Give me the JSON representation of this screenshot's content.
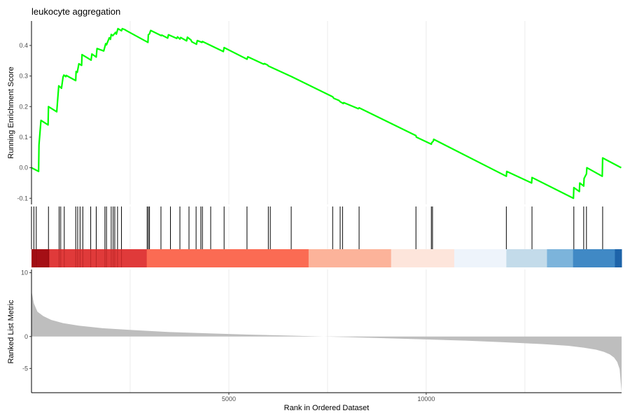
{
  "chart_data": {
    "type": "line",
    "title": "leukocyte aggregation",
    "xlabel": "Rank in Ordered Dataset",
    "x_ticks": [
      5000,
      10000
    ],
    "xlim": [
      0,
      14950
    ],
    "grid": "vertical",
    "running_score": {
      "ylabel": "Running Enrichment Score",
      "y_ticks": [
        -0.1,
        0.0,
        0.1,
        0.2,
        0.3,
        0.4
      ],
      "ylim": [
        -0.12,
        0.48
      ],
      "color": "#00ff00",
      "x": [
        0,
        180,
        190,
        240,
        420,
        430,
        640,
        660,
        690,
        760,
        800,
        820,
        870,
        880,
        1120,
        1130,
        1160,
        1200,
        1270,
        1280,
        1510,
        1530,
        1640,
        1660,
        1830,
        1880,
        1900,
        1970,
        2000,
        2020,
        2060,
        2130,
        2150,
        2190,
        2280,
        2300,
        2320,
        2360,
        2410,
        2950,
        2960,
        2990,
        3010,
        3020,
        3290,
        3300,
        3450,
        3470,
        3680,
        3700,
        3760,
        3780,
        3930,
        3950,
        4040,
        4060,
        4180,
        4200,
        4320,
        4330,
        4860,
        4880,
        5460,
        5480,
        5880,
        5900,
        5980,
        6000,
        6590,
        7630,
        7660,
        7790,
        7820,
        7900,
        7910,
        8280,
        8300,
        9740,
        9750,
        10130,
        10140,
        10180,
        10190,
        12030,
        12040,
        12670,
        12680,
        13730,
        13740,
        13880,
        13890,
        13990,
        14000,
        14060,
        14070,
        14460,
        14470,
        14940
      ],
      "y": [
        0.0,
        -0.012,
        0.075,
        0.155,
        0.14,
        0.2,
        0.183,
        0.218,
        0.268,
        0.26,
        0.297,
        0.303,
        0.298,
        0.302,
        0.285,
        0.315,
        0.312,
        0.34,
        0.335,
        0.37,
        0.352,
        0.372,
        0.362,
        0.39,
        0.382,
        0.406,
        0.402,
        0.425,
        0.42,
        0.436,
        0.432,
        0.443,
        0.437,
        0.455,
        0.448,
        0.455,
        0.454,
        0.452,
        0.448,
        0.41,
        0.435,
        0.438,
        0.446,
        0.449,
        0.432,
        0.434,
        0.424,
        0.435,
        0.423,
        0.428,
        0.421,
        0.426,
        0.415,
        0.427,
        0.418,
        0.412,
        0.404,
        0.416,
        0.41,
        0.413,
        0.38,
        0.393,
        0.355,
        0.363,
        0.339,
        0.341,
        0.336,
        0.333,
        0.298,
        0.232,
        0.227,
        0.22,
        0.216,
        0.21,
        0.213,
        0.193,
        0.196,
        0.105,
        0.1,
        0.077,
        0.082,
        0.087,
        0.093,
        -0.028,
        -0.012,
        -0.05,
        -0.032,
        -0.1,
        -0.065,
        -0.078,
        -0.05,
        -0.06,
        -0.035,
        -0.02,
        0.0,
        -0.028,
        0.032,
        0.0
      ]
    },
    "hit_positions": [
      60,
      120,
      430,
      700,
      740,
      830,
      1120,
      1170,
      1230,
      1300,
      1500,
      1640,
      1860,
      1900,
      2020,
      2070,
      2110,
      2180,
      2280,
      2930,
      2960,
      2990,
      3280,
      3520,
      3760,
      3990,
      4170,
      4290,
      4330,
      4540,
      4880,
      5460,
      6000,
      6050,
      6580,
      7630,
      7820,
      7880,
      8300,
      9740,
      10130,
      10160,
      12030,
      12680,
      13740,
      13990,
      14060,
      14470
    ],
    "color_bar": {
      "colors": [
        "#67000d",
        "#a50f15",
        "#cb181d",
        "#ef3b2c",
        "#fb6a4a",
        "#fc9272",
        "#fcbba1",
        "#fee0d2",
        "#eef4fb",
        "#c6dbef",
        "#9ecae1",
        "#6baed6",
        "#4292c6",
        "#2171b5"
      ],
      "breaks": [
        0,
        150,
        450,
        2900,
        7000,
        9100,
        10700,
        12000,
        13050,
        13050,
        13700,
        13700,
        14650,
        14950
      ],
      "segments": [
        {
          "start": 0,
          "end": 450,
          "color": "#a50f15"
        },
        {
          "start": 450,
          "end": 2920,
          "color": "#e03a3a"
        },
        {
          "start": 2920,
          "end": 7020,
          "color": "#fb6b53"
        },
        {
          "start": 7020,
          "end": 9110,
          "color": "#fcb39a"
        },
        {
          "start": 9110,
          "end": 10710,
          "color": "#fde5db"
        },
        {
          "start": 10710,
          "end": 12030,
          "color": "#eef4fb"
        },
        {
          "start": 12030,
          "end": 13060,
          "color": "#c3dbea"
        },
        {
          "start": 13060,
          "end": 13720,
          "color": "#7cb4db"
        },
        {
          "start": 13720,
          "end": 14780,
          "color": "#4089c5"
        },
        {
          "start": 14780,
          "end": 14950,
          "color": "#1e64a9"
        }
      ]
    },
    "ranked_metric": {
      "ylabel": "Ranked List Metric",
      "y_ticks": [
        10,
        0,
        -5
      ],
      "ylim": [
        -8.8,
        10.5
      ],
      "fill_color": "#bebebe",
      "x": [
        0,
        10,
        60,
        150,
        300,
        500,
        800,
        1200,
        1800,
        2600,
        3500,
        4500,
        5500,
        6500,
        7400,
        8000,
        9000,
        10000,
        11000,
        12000,
        13000,
        13600,
        14000,
        14300,
        14500,
        14650,
        14760,
        14840,
        14900,
        14950
      ],
      "y": [
        7.5,
        6.8,
        5.2,
        3.9,
        3.2,
        2.6,
        2.1,
        1.7,
        1.3,
        1.0,
        0.7,
        0.5,
        0.3,
        0.15,
        0.0,
        -0.1,
        -0.28,
        -0.45,
        -0.65,
        -0.9,
        -1.2,
        -1.45,
        -1.75,
        -2.05,
        -2.4,
        -2.8,
        -3.3,
        -4.0,
        -5.1,
        -8.7
      ]
    }
  }
}
